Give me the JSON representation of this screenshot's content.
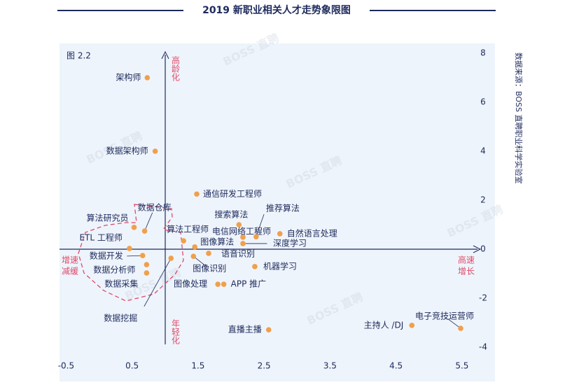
{
  "chart_data": {
    "type": "scatter",
    "title": "2019 新职业相关人才走势象限图",
    "figure_label": "图 2.2",
    "source": "数据来源：BOSS 直聘职业科学实验室",
    "watermark": "BOSS 直聘",
    "quadrant_labels": {
      "top": "高龄化",
      "bottom": "年轻化",
      "left": [
        "增速",
        "减缓"
      ],
      "right": [
        "高速",
        "增长"
      ]
    },
    "labels": [
      "架构师",
      "数据架构师",
      "通信研发工程师",
      "搜索算法",
      "电信网络工程师",
      "推荐算法",
      "自然语言处理",
      "深度学习",
      "图像算法",
      "算法工程师",
      "语音识别",
      "图像识别",
      "机器学习",
      "图像处理",
      "APP 推广",
      "直播主播",
      "主持人 /DJ",
      "电子竞技运营师",
      "数据挖掘",
      "数据采集",
      "数据分析师",
      "数据开发",
      "ETL 工程师",
      "算法研究员",
      "数据仓库"
    ],
    "x": [
      0.73,
      0.85,
      1.48,
      2.12,
      2.18,
      2.38,
      2.74,
      2.18,
      1.45,
      1.28,
      1.66,
      1.43,
      2.36,
      1.8,
      1.89,
      2.57,
      4.74,
      5.48,
      1.09,
      0.72,
      0.72,
      0.66,
      0.46,
      0.53,
      0.69
    ],
    "y": [
      7.0,
      4.0,
      2.25,
      1.0,
      0.49,
      0.51,
      0.63,
      0.23,
      0.09,
      0.34,
      -0.17,
      -0.29,
      -0.71,
      -1.43,
      -1.43,
      -3.29,
      -3.11,
      -3.23,
      -0.37,
      -0.97,
      -0.63,
      -0.26,
      0.03,
      0.89,
      0.74
    ],
    "color": "#f0a04b",
    "xlim": [
      -0.6,
      6.0
    ],
    "ylim": [
      -5.4,
      8.4
    ],
    "xticks": [
      -0.5,
      0.5,
      1.5,
      2.5,
      3.5,
      4.5,
      5.5
    ],
    "yticks": [
      -4,
      -2,
      0,
      2,
      4,
      6,
      8
    ]
  }
}
